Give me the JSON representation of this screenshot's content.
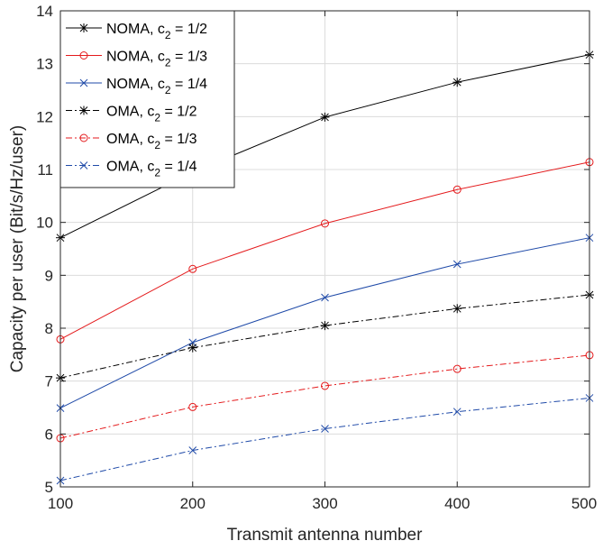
{
  "chart_data": {
    "type": "line",
    "title": "",
    "xlabel": "Transmit antenna number",
    "ylabel": "Capacity per user (Bit/s/Hz/user)",
    "x": [
      100,
      200,
      300,
      400,
      500
    ],
    "xlim": [
      100,
      500
    ],
    "ylim": [
      5,
      14
    ],
    "xticks": [
      "100",
      "200",
      "300",
      "400",
      "500"
    ],
    "yticks": [
      "5",
      "6",
      "7",
      "8",
      "9",
      "10",
      "11",
      "12",
      "13",
      "14"
    ],
    "grid": true,
    "legend_location": "top-left",
    "series": [
      {
        "name": "NOMA, c2 = 1/2",
        "legend_main": "NOMA, c",
        "legend_sub": "2",
        "legend_tail": " = 1/2",
        "color": "#000000",
        "dash": "solid",
        "marker": "star",
        "values": [
          9.71,
          10.95,
          11.99,
          12.65,
          13.17
        ]
      },
      {
        "name": "NOMA, c2 = 1/3",
        "legend_main": "NOMA, c",
        "legend_sub": "2",
        "legend_tail": " = 1/3",
        "color": "#e41a1c",
        "dash": "solid",
        "marker": "circle",
        "values": [
          7.79,
          9.12,
          9.98,
          10.62,
          11.14
        ]
      },
      {
        "name": "NOMA, c2 = 1/4",
        "legend_main": "NOMA, c",
        "legend_sub": "2",
        "legend_tail": " = 1/4",
        "color": "#1f4aa8",
        "dash": "solid",
        "marker": "x",
        "values": [
          6.49,
          7.73,
          8.58,
          9.21,
          9.71
        ]
      },
      {
        "name": "OMA, c2 = 1/2",
        "legend_main": "OMA, c",
        "legend_sub": "2",
        "legend_tail": " = 1/2",
        "color": "#000000",
        "dash": "dashdot",
        "marker": "star",
        "values": [
          7.06,
          7.63,
          8.05,
          8.37,
          8.63
        ]
      },
      {
        "name": "OMA, c2 = 1/3",
        "legend_main": "OMA, c",
        "legend_sub": "2",
        "legend_tail": " = 1/3",
        "color": "#e41a1c",
        "dash": "dashdot",
        "marker": "circle",
        "values": [
          5.92,
          6.51,
          6.91,
          7.23,
          7.49
        ]
      },
      {
        "name": "OMA, c2 = 1/4",
        "legend_main": "OMA, c",
        "legend_sub": "2",
        "legend_tail": " = 1/4",
        "color": "#1f4aa8",
        "dash": "dashdot",
        "marker": "x",
        "values": [
          5.12,
          5.69,
          6.1,
          6.42,
          6.68
        ]
      }
    ]
  }
}
